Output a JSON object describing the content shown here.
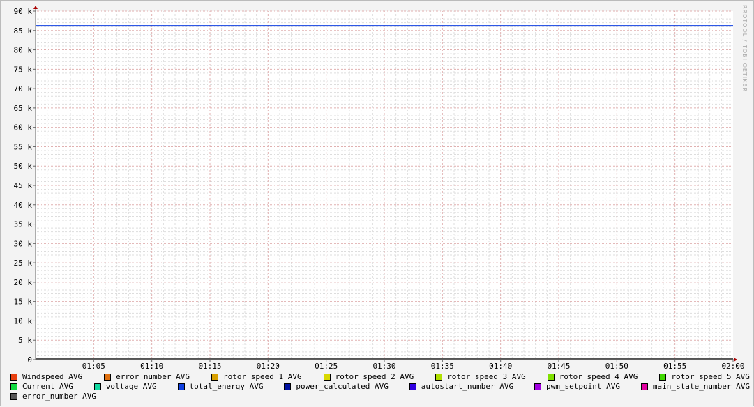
{
  "watermark": "RRDTOOL / TOBI OETIKER",
  "chart_data": {
    "type": "line",
    "title": "",
    "xlabel": "",
    "ylabel": "",
    "x_ticks": [
      "01:05",
      "01:10",
      "01:15",
      "01:20",
      "01:25",
      "01:30",
      "01:35",
      "01:40",
      "01:45",
      "01:50",
      "01:55",
      "02:00"
    ],
    "x_range": [
      "01:00",
      "02:00"
    ],
    "y_ticks": [
      "0",
      "5 k",
      "10 k",
      "15 k",
      "20 k",
      "25 k",
      "30 k",
      "35 k",
      "40 k",
      "45 k",
      "50 k",
      "55 k",
      "60 k",
      "65 k",
      "70 k",
      "75 k",
      "80 k",
      "85 k",
      "90 k"
    ],
    "ylim": [
      0,
      90000
    ],
    "grid": true,
    "legend_position": "bottom",
    "series": [
      {
        "name": "Windspeed AVG",
        "color": "#E84010",
        "values": [
          0,
          0
        ]
      },
      {
        "name": "error_number AVG",
        "color": "#E07010",
        "values": [
          0,
          0
        ]
      },
      {
        "name": "rotor speed 1 AVG",
        "color": "#D8A000",
        "values": [
          0,
          0
        ]
      },
      {
        "name": "rotor speed 2 AVG",
        "color": "#D8D800",
        "values": [
          0,
          0
        ]
      },
      {
        "name": "rotor speed 3 AVG",
        "color": "#B0E000",
        "values": [
          0,
          0
        ]
      },
      {
        "name": "rotor speed 4 AVG",
        "color": "#80E000",
        "values": [
          0,
          0
        ]
      },
      {
        "name": "rotor speed 5 AVG",
        "color": "#40D800",
        "values": [
          0,
          0
        ]
      },
      {
        "name": "Current AVG",
        "color": "#10D840",
        "values": [
          0,
          0
        ]
      },
      {
        "name": "voltage AVG",
        "color": "#10D8A0",
        "values": [
          0,
          0
        ]
      },
      {
        "name": "total_energy AVG",
        "color": "#1040E0",
        "values": [
          86200,
          86200
        ]
      },
      {
        "name": "power_calculated AVG",
        "color": "#0010A0",
        "values": [
          0,
          0
        ]
      },
      {
        "name": "autostart_number AVG",
        "color": "#3000E0",
        "values": [
          0,
          0
        ]
      },
      {
        "name": "pwm_setpoint AVG",
        "color": "#A000E0",
        "values": [
          0,
          0
        ]
      },
      {
        "name": "main_state_number AVG",
        "color": "#E000A0",
        "values": [
          0,
          0
        ]
      },
      {
        "name": "error_number AVG",
        "color": "#555555",
        "values": [
          0,
          0
        ]
      }
    ]
  }
}
